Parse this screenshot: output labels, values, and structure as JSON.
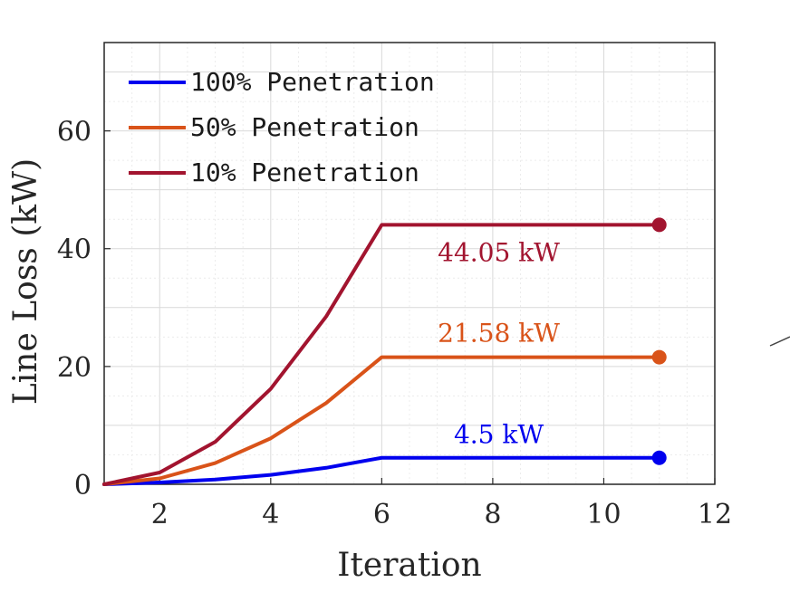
{
  "chart_data": {
    "type": "line",
    "title": "",
    "xlabel": "Iteration",
    "ylabel": "Line Loss (kW)",
    "xlim": [
      1,
      12
    ],
    "ylim": [
      0,
      75
    ],
    "xticks": [
      2,
      4,
      6,
      8,
      10,
      12
    ],
    "yticks": [
      0,
      20,
      40,
      60
    ],
    "grid": true,
    "minor_grid": true,
    "legend_position": "top-left",
    "x": [
      1,
      2,
      3,
      4,
      5,
      6,
      7,
      8,
      9,
      10,
      11
    ],
    "series": [
      {
        "name": "100% Penetration",
        "color": "#0000ee",
        "values": [
          0,
          0.3,
          0.8,
          1.6,
          2.8,
          4.5,
          4.5,
          4.5,
          4.5,
          4.5,
          4.5
        ],
        "annotation": "4.5 kW"
      },
      {
        "name": "50% Penetration",
        "color": "#d95319",
        "values": [
          0,
          1.0,
          3.6,
          7.8,
          13.8,
          21.58,
          21.58,
          21.58,
          21.58,
          21.58,
          21.58
        ],
        "annotation": "21.58 kW"
      },
      {
        "name": "10% Penetration",
        "color": "#a2142f",
        "values": [
          0,
          2.0,
          7.2,
          16.2,
          28.5,
          44.05,
          44.05,
          44.05,
          44.05,
          44.05,
          44.05
        ],
        "annotation": "44.05 kW"
      }
    ]
  }
}
